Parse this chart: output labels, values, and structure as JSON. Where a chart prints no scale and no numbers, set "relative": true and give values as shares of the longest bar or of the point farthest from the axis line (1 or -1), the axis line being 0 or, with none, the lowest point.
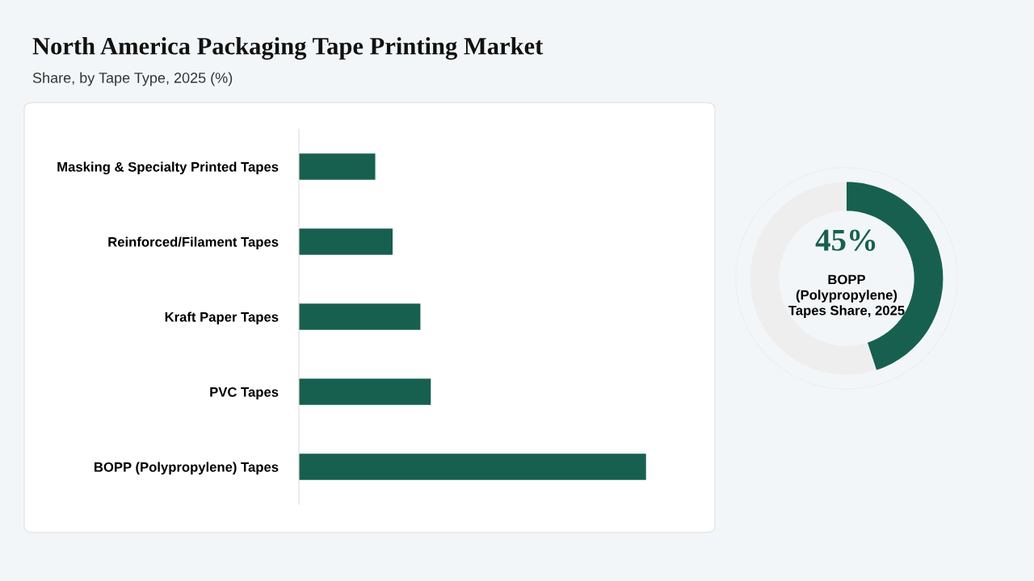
{
  "chart_data": [
    {
      "type": "bar",
      "orientation": "horizontal",
      "relative": true,
      "title": "North America Packaging Tape Printing Market",
      "subtitle": "Share, by Tape Type, 2025 (%)",
      "categories": [
        "Masking & Specialty Printed Tapes",
        "Reinforced/Filament Tapes",
        "Kraft Paper Tapes",
        "PVC Tapes",
        "BOPP (Polypropylene) Tapes"
      ],
      "values": [
        0.22,
        0.27,
        0.35,
        0.38,
        1
      ],
      "color": "#17604f",
      "tick_labels": "y"
    },
    {
      "type": "donut",
      "categories": [
        null,
        null
      ],
      "annotations": [
        "BOPP (Polypropylene) Tapes Share, 2025"
      ],
      "values": [
        45,
        55
      ],
      "colors": [
        "#17604f",
        "#eeeeee"
      ],
      "value_labels": [
        "45%",
        null
      ]
    }
  ]
}
